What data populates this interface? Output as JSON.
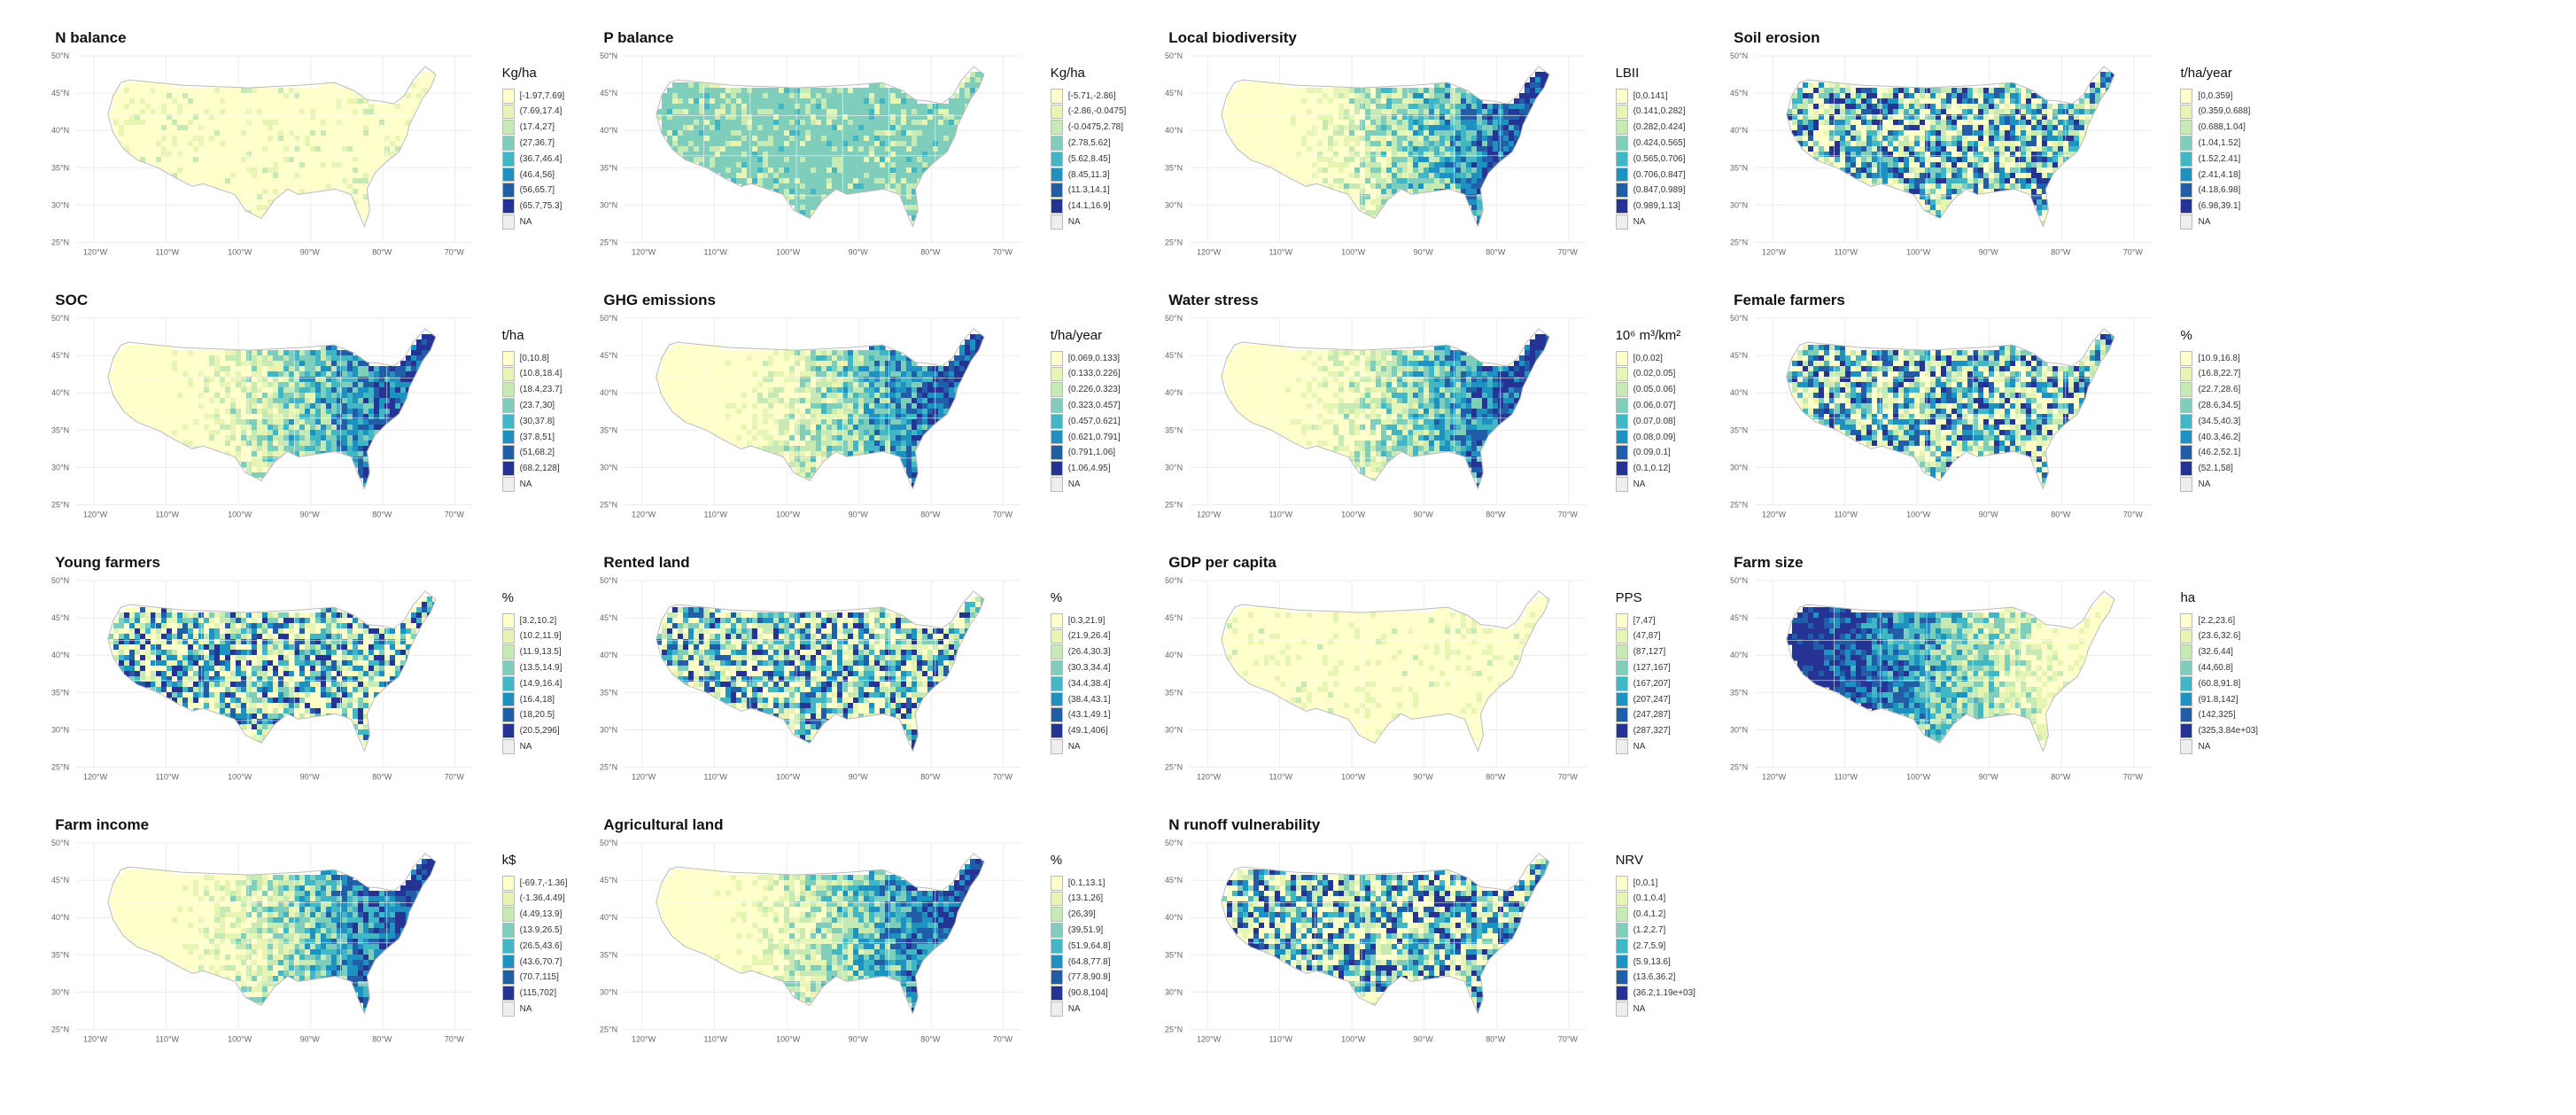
{
  "palette": [
    "#ffffcc",
    "#e6f5b3",
    "#c7e9b4",
    "#7fcdbb",
    "#41b6c4",
    "#1d91c0",
    "#225ea8",
    "#253494",
    "#081d58"
  ],
  "na_color": "#eeeeee",
  "axes": {
    "lat": [
      "50°N",
      "45°N",
      "40°N",
      "35°N",
      "30°N",
      "25°N"
    ],
    "lon": [
      "120°W",
      "110°W",
      "100°W",
      "90°W",
      "80°W",
      "70°W"
    ]
  },
  "panels": [
    {
      "title": "N balance",
      "unit": "Kg/ha",
      "theme": "light",
      "legend": [
        "[-1.97,7.69]",
        "(7.69,17.4]",
        "(17.4,27]",
        "(27,36.7]",
        "(36.7,46.4]",
        "(46.4,56]",
        "(56,65.7]",
        "(65.7,75.3]",
        "NA"
      ]
    },
    {
      "title": "P balance",
      "unit": "Kg/ha",
      "theme": "teal",
      "legend": [
        "[-5.71,-2.86]",
        "(-2.86,-0.0475]",
        "(-0.0475,2.78]",
        "(2.78,5.62]",
        "(5.62,8.45]",
        "(8.45,11.3]",
        "(11.3,14.1]",
        "(14.1,16.9]",
        "NA"
      ]
    },
    {
      "title": "Local biodiversity",
      "unit": "LBII",
      "theme": "east",
      "legend": [
        "[0,0.141]",
        "(0.141,0.282]",
        "(0.282,0.424]",
        "(0.424,0.565]",
        "(0.565,0.706]",
        "(0.706,0.847]",
        "(0.847,0.989]",
        "(0.989,1.13]",
        "NA"
      ]
    },
    {
      "title": "Soil erosion",
      "unit": "t/ha/year",
      "theme": "mixed",
      "legend": [
        "[0,0.359]",
        "(0.359,0.688]",
        "(0.688,1.04]",
        "(1.04,1.52]",
        "(1.52,2.41]",
        "(2.41,4.18]",
        "(4.18,6.98]",
        "(6.98,39.1]",
        "NA"
      ]
    },
    {
      "title": "SOC",
      "unit": "t/ha",
      "theme": "east",
      "legend": [
        "[0,10.8]",
        "(10.8,18.4]",
        "(18.4,23.7]",
        "(23.7,30]",
        "(30,37.8]",
        "(37.8,51]",
        "(51,68.2]",
        "(68.2,128]",
        "NA"
      ]
    },
    {
      "title": "GHG emissions",
      "unit": "t/ha/year",
      "theme": "east",
      "legend": [
        "[0.069,0.133]",
        "(0.133,0.226]",
        "(0.226,0.323]",
        "(0.323,0.457]",
        "(0.457,0.621]",
        "(0.621,0.791]",
        "(0.791,1.06]",
        "(1.06,4.95]",
        "NA"
      ]
    },
    {
      "title": "Water stress",
      "unit": "10⁶ m³/km²",
      "theme": "east",
      "legend": [
        "[0,0.02]",
        "(0.02,0.05]",
        "(0.05,0.06]",
        "(0.06,0.07]",
        "(0.07,0.08]",
        "(0.08,0.09]",
        "(0.09,0.1]",
        "(0.1,0.12]",
        "NA"
      ]
    },
    {
      "title": "Female farmers",
      "unit": "%",
      "theme": "mixed",
      "legend": [
        "[10.9,16.8]",
        "(16.8,22.7]",
        "(22.7,28.6]",
        "(28.6,34.5]",
        "(34.5,40.3]",
        "(40.3,46.2]",
        "(46.2,52.1]",
        "(52.1,58]",
        "NA"
      ]
    },
    {
      "title": "Young farmers",
      "unit": "%",
      "theme": "mixed",
      "legend": [
        "[3.2,10.2]",
        "(10.2,11.9]",
        "(11.9,13.5]",
        "(13.5,14.9]",
        "(14.9,16.4]",
        "(16.4,18]",
        "(18,20.5]",
        "(20.5,296]",
        "NA"
      ]
    },
    {
      "title": "Rented land",
      "unit": "%",
      "theme": "mixed",
      "legend": [
        "[0.3,21.9]",
        "(21.9,26.4]",
        "(26.4,30.3]",
        "(30.3,34.4]",
        "(34.4,38.4]",
        "(38.4,43.1]",
        "(43.1,49.1]",
        "(49.1,406]",
        "NA"
      ]
    },
    {
      "title": "GDP per capita",
      "unit": "PPS",
      "theme": "light",
      "legend": [
        "[7,47]",
        "(47,87]",
        "(87,127]",
        "(127,167]",
        "(167,207]",
        "(207,247]",
        "(247,287]",
        "(287,327]",
        "NA"
      ]
    },
    {
      "title": "Farm size",
      "unit": "ha",
      "theme": "west",
      "legend": [
        "[2.2,23.6]",
        "(23.6,32.6]",
        "(32.6,44]",
        "(44,60.8]",
        "(60.8,91.8]",
        "(91.8,142]",
        "(142,325]",
        "(325,3.84e+03]",
        "NA"
      ]
    },
    {
      "title": "Farm income",
      "unit": "k$",
      "theme": "east",
      "legend": [
        "[-69.7,-1.36]",
        "(-1.36,4.49]",
        "(4.49,13.9]",
        "(13.9,26.5]",
        "(26.5,43.6]",
        "(43.6,70.7]",
        "(70.7,115]",
        "(115,702]",
        "NA"
      ]
    },
    {
      "title": "Agricultural land",
      "unit": "%",
      "theme": "east",
      "legend": [
        "[0.1,13.1]",
        "(13.1,26]",
        "(26,39]",
        "(39,51.9]",
        "(51.9,64.8]",
        "(64.8,77.8]",
        "(77.8,90.8]",
        "(90.8,104]",
        "NA"
      ]
    },
    {
      "title": "N runoff vulnerability",
      "unit": "NRV",
      "theme": "mixed",
      "legend": [
        "[0,0.1]",
        "(0.1,0.4]",
        "(0.4,1.2]",
        "(1.2,2.7]",
        "(2.7,5.9]",
        "(5.9,13.6]",
        "(13.6,36.2]",
        "(36.2,1.19e+03]",
        "NA"
      ]
    }
  ]
}
